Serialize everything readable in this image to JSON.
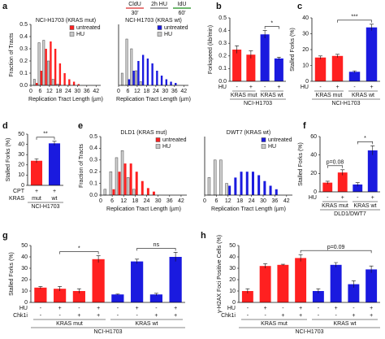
{
  "chart_data": [
    {
      "type": "grouped_bar",
      "panel": "a",
      "title": "NCI-H1703 (KRAS mut)",
      "xlabel": "Replication Tract Length (µm)",
      "ylabel": "Fraction of Tracts",
      "protocol": {
        "labels": [
          "CldU",
          "2h HU",
          "IdU"
        ],
        "durations": [
          "30'",
          "60'"
        ]
      },
      "x": [
        3,
        6,
        9,
        12,
        15,
        18,
        21,
        24,
        27,
        30
      ],
      "series": [
        {
          "name": "untreated",
          "color": "#ff2020",
          "values": [
            0.02,
            0.12,
            0.3,
            0.36,
            0.3,
            0.18,
            0.1,
            0.05,
            0.03,
            0.01
          ]
        },
        {
          "name": "HU",
          "color": "#c8c8c8",
          "values": [
            0.05,
            0.35,
            0.37,
            0.2,
            0.05,
            0.01,
            null,
            null,
            null,
            null
          ]
        }
      ],
      "xlim": [
        0,
        45
      ],
      "xticks": [
        0,
        6,
        12,
        18,
        24,
        30,
        36,
        42
      ],
      "ylim": [
        0,
        0.5
      ],
      "yticks": [
        {
          "value": 0,
          "label": "0.0"
        },
        0.1,
        0.2,
        0.3,
        0.4,
        0.5
      ]
    },
    {
      "type": "grouped_bar",
      "title": "NCI-H1703 (KRAS wt)",
      "xlabel": "Replication Tract Length (µm)",
      "x": [
        3,
        6,
        9,
        12,
        15,
        18,
        21,
        24,
        27,
        30,
        33,
        36
      ],
      "series": [
        {
          "name": "untreated",
          "color": "#1a1adf",
          "values": [
            null,
            0.05,
            0.12,
            0.2,
            0.25,
            0.22,
            0.18,
            0.12,
            0.08,
            0.05,
            0.03,
            0.02
          ]
        },
        {
          "name": "HU",
          "color": "#c8c8c8",
          "values": [
            0.1,
            0.38,
            0.3,
            0.12,
            0.03,
            null,
            null,
            null,
            null,
            null,
            null,
            null
          ]
        }
      ],
      "xlim": [
        0,
        45
      ],
      "xticks": [
        0,
        6,
        12,
        18,
        24,
        30,
        36,
        42
      ],
      "ylim": [
        0,
        0.5
      ]
    },
    {
      "type": "bar",
      "panel": "b",
      "ylabel": "Forkspeed (kb/min)",
      "values": [
        0.25,
        0.21,
        0.37,
        0.18
      ],
      "errors": [
        0.03,
        0.03,
        0.03,
        0.01
      ],
      "colors": [
        "#ff2020",
        "#ff2020",
        "#1a1adf",
        "#1a1adf"
      ],
      "ylim": [
        0,
        0.5
      ],
      "yticks": [
        {
          "value": 0,
          "label": "0.0"
        },
        0.1,
        0.2,
        0.3,
        0.4,
        0.5
      ],
      "rows": [
        {
          "label": "HU",
          "values": [
            "-",
            "+",
            "-",
            "+"
          ]
        }
      ],
      "groups": [
        "KRAS mut",
        "KRAS wt"
      ],
      "footer": "NCI-H1703",
      "annotations": [
        "*"
      ]
    },
    {
      "type": "bar",
      "panel": "c",
      "ylabel": "Stalled Forks (%)",
      "values": [
        15,
        16,
        6,
        34
      ],
      "errors": [
        1,
        1,
        0.6,
        2
      ],
      "colors": [
        "#ff2020",
        "#ff2020",
        "#1a1adf",
        "#1a1adf"
      ],
      "ylim": [
        0,
        40
      ],
      "yticks": [
        0,
        10,
        20,
        30,
        40
      ],
      "rows": [
        {
          "label": "HU",
          "values": [
            "-",
            "+",
            "-",
            "+"
          ]
        }
      ],
      "groups": [
        "KRAS mut",
        "KRAS wt"
      ],
      "footer": "NCI-H1703",
      "annotations": [
        "***"
      ]
    },
    {
      "type": "bar",
      "panel": "d",
      "ylabel": "Stalled Forks (%)",
      "values": [
        24,
        41
      ],
      "errors": [
        2,
        2
      ],
      "colors": [
        "#ff2020",
        "#1a1adf"
      ],
      "ylim": [
        0,
        50
      ],
      "yticks": [
        0,
        10,
        20,
        30,
        40,
        50
      ],
      "rows": [
        {
          "label": "CPT",
          "values": [
            "+",
            "+"
          ]
        },
        {
          "label": "KRAS",
          "values": [
            "mut",
            "wt"
          ]
        }
      ],
      "footer": "NCI-H1703",
      "annotations": [
        "**"
      ]
    },
    {
      "type": "grouped_bar",
      "panel": "e",
      "title": "DLD1 (KRAS mut)",
      "xlabel": "Replication Tract Length (µm)",
      "ylabel": "Fraction of Tracts",
      "x": [
        3,
        6,
        9,
        12,
        15,
        18,
        21,
        24,
        27
      ],
      "series": [
        {
          "name": "untreated",
          "color": "#ff2020",
          "values": [
            null,
            0.05,
            0.2,
            0.27,
            0.27,
            0.2,
            0.12,
            0.06,
            0.03
          ]
        },
        {
          "name": "HU",
          "color": "#c8c8c8",
          "values": [
            0.05,
            0.2,
            0.32,
            0.38,
            0.15,
            0.05,
            null,
            null,
            null
          ]
        }
      ],
      "xlim": [
        0,
        45
      ],
      "xticks": [
        0,
        6,
        12,
        18,
        24,
        30,
        36,
        42
      ],
      "ylim": [
        0,
        0.5
      ],
      "yticks": [
        {
          "value": 0,
          "label": "0.0"
        },
        0.1,
        0.2,
        0.3,
        0.4,
        0.5
      ]
    },
    {
      "type": "grouped_bar",
      "title": "DWT7 (KRAS wt)",
      "xlabel": "Replication Tract Length (µm)",
      "x": [
        3,
        6,
        9,
        12,
        15,
        18,
        21,
        24,
        27,
        30,
        33,
        36
      ],
      "series": [
        {
          "name": "untreated",
          "color": "#1a1adf",
          "values": [
            null,
            null,
            null,
            0.08,
            0.15,
            0.2,
            0.2,
            0.2,
            0.17,
            0.12,
            0.08,
            0.05
          ]
        },
        {
          "name": "HU",
          "color": "#c8c8c8",
          "values": [
            0.15,
            0.3,
            0.3,
            0.1,
            null,
            null,
            null,
            null,
            null,
            null,
            null,
            null
          ]
        }
      ],
      "xlim": [
        0,
        45
      ],
      "xticks": [
        0,
        6,
        12,
        18,
        24,
        30,
        36,
        42
      ],
      "ylim": [
        0,
        0.5
      ]
    },
    {
      "type": "bar",
      "panel": "f",
      "ylabel": "Stalled Forks (%)",
      "values": [
        10,
        21,
        8,
        45
      ],
      "errors": [
        1.5,
        3,
        2,
        5
      ],
      "colors": [
        "#ff2020",
        "#ff2020",
        "#1a1adf",
        "#1a1adf"
      ],
      "ylim": [
        0,
        60
      ],
      "yticks": [
        0,
        20,
        40,
        60
      ],
      "rows": [
        {
          "label": "HU",
          "values": [
            "-",
            "+",
            "-",
            "+"
          ]
        }
      ],
      "groups": [
        "KRAS mut",
        "KRAS wt"
      ],
      "footer": "DLD1/DWT7",
      "annotations": [
        "p=0.08",
        "*"
      ]
    },
    {
      "type": "bar",
      "panel": "g",
      "ylabel": "Stalled Forks (%)",
      "values": [
        13,
        12,
        10,
        38,
        7,
        36,
        7,
        40
      ],
      "errors": [
        1,
        2,
        2,
        3,
        0.5,
        2,
        1,
        4
      ],
      "colors": [
        "#ff2020",
        "#ff2020",
        "#ff2020",
        "#ff2020",
        "#1a1adf",
        "#1a1adf",
        "#1a1adf",
        "#1a1adf"
      ],
      "ylim": [
        0,
        50
      ],
      "yticks": [
        0,
        10,
        20,
        30,
        40,
        50
      ],
      "rows": [
        {
          "label": "HU",
          "values": [
            "-",
            "+",
            "-",
            "+",
            "-",
            "+",
            "-",
            "+"
          ]
        },
        {
          "label": "Chk1i",
          "values": [
            "-",
            "-",
            "+",
            "+",
            "-",
            "-",
            "+",
            "+"
          ]
        }
      ],
      "groups": [
        "KRAS mut",
        "KRAS wt"
      ],
      "footer": "NCI-H1703",
      "annotations": [
        "*",
        "ns"
      ]
    },
    {
      "type": "bar",
      "panel": "h",
      "ylabel": "γ-H2AX Foci Positive Cells (%)",
      "values": [
        10,
        32,
        33,
        39,
        10,
        33,
        16,
        29
      ],
      "errors": [
        2,
        2,
        0.5,
        3,
        2,
        2,
        3,
        3
      ],
      "colors": [
        "#ff2020",
        "#ff2020",
        "#ff2020",
        "#ff2020",
        "#1a1adf",
        "#1a1adf",
        "#1a1adf",
        "#1a1adf"
      ],
      "ylim": [
        0,
        50
      ],
      "yticks": [
        0,
        10,
        20,
        30,
        40,
        50
      ],
      "rows": [
        {
          "label": "HU",
          "values": [
            "-",
            "+",
            "-",
            "+",
            "-",
            "+",
            "-",
            "+"
          ]
        },
        {
          "label": "Chk1i",
          "values": [
            "-",
            "-",
            "+",
            "+",
            "-",
            "-",
            "+",
            "+"
          ]
        }
      ],
      "groups": [
        "KRAS mut",
        "KRAS wt"
      ],
      "footer": "NCI-H1703",
      "annotations": [
        "p=0.09"
      ]
    }
  ]
}
